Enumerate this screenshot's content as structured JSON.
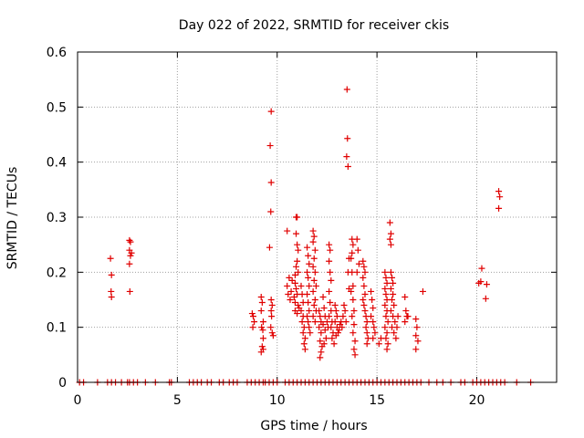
{
  "chart_data": {
    "type": "scatter",
    "title": "Day 022 of 2022, SRMTID for receiver ckis",
    "xlabel": "GPS time / hours",
    "ylabel": "SRMTID / TECUs",
    "xlim": [
      0,
      24
    ],
    "ylim": [
      0,
      0.6
    ],
    "xticks": [
      0,
      5,
      10,
      15,
      20
    ],
    "xtick_labels": [
      "0",
      "5",
      "10",
      "15",
      "20"
    ],
    "yticks": [
      0,
      0.1,
      0.2,
      0.3,
      0.4,
      0.5,
      0.6
    ],
    "ytick_labels": [
      "0",
      "0.1",
      "0.2",
      "0.3",
      "0.4",
      "0.5",
      "0.6"
    ],
    "grid": true,
    "marker": "+",
    "series_color": "#e00000",
    "zero_x": [
      0.1,
      0.3,
      1.0,
      1.5,
      1.7,
      1.9,
      2.2,
      2.5,
      2.6,
      2.8,
      3.0,
      3.4,
      3.9,
      4.6,
      4.7,
      5.6,
      5.8,
      6.0,
      6.2,
      6.5,
      6.7,
      7.1,
      7.3,
      7.6,
      7.8,
      8.0,
      8.5,
      8.7,
      8.9,
      9.1,
      9.3,
      9.4,
      9.6,
      9.8,
      10.0,
      10.4,
      10.6,
      10.8,
      11.0,
      11.2,
      11.4,
      11.6,
      11.8,
      12.0,
      12.2,
      12.4,
      12.6,
      12.8,
      13.0,
      13.2,
      13.4,
      13.6,
      13.8,
      14.0,
      14.2,
      14.4,
      14.6,
      14.8,
      15.0,
      15.2,
      15.4,
      15.6,
      15.8,
      16.0,
      16.2,
      16.4,
      16.6,
      16.8,
      17.0,
      17.2,
      17.6,
      18.0,
      18.3,
      18.7,
      19.2,
      19.4,
      19.8,
      20.0,
      20.2,
      20.4,
      20.6,
      20.8,
      21.0,
      21.2,
      21.4,
      22.0,
      22.7
    ],
    "points": [
      {
        "x": 1.65,
        "y": 0.225
      },
      {
        "x": 1.7,
        "y": 0.195
      },
      {
        "x": 1.68,
        "y": 0.165
      },
      {
        "x": 1.7,
        "y": 0.155
      },
      {
        "x": 2.6,
        "y": 0.258
      },
      {
        "x": 2.65,
        "y": 0.255
      },
      {
        "x": 2.6,
        "y": 0.24
      },
      {
        "x": 2.7,
        "y": 0.235
      },
      {
        "x": 2.65,
        "y": 0.23
      },
      {
        "x": 2.6,
        "y": 0.215
      },
      {
        "x": 2.62,
        "y": 0.165
      },
      {
        "x": 8.75,
        "y": 0.125
      },
      {
        "x": 8.8,
        "y": 0.12
      },
      {
        "x": 8.85,
        "y": 0.11
      },
      {
        "x": 8.78,
        "y": 0.1
      },
      {
        "x": 9.2,
        "y": 0.155
      },
      {
        "x": 9.25,
        "y": 0.145
      },
      {
        "x": 9.2,
        "y": 0.13
      },
      {
        "x": 9.3,
        "y": 0.11
      },
      {
        "x": 9.22,
        "y": 0.1
      },
      {
        "x": 9.28,
        "y": 0.095
      },
      {
        "x": 9.3,
        "y": 0.08
      },
      {
        "x": 9.25,
        "y": 0.065
      },
      {
        "x": 9.3,
        "y": 0.06
      },
      {
        "x": 9.2,
        "y": 0.055
      },
      {
        "x": 9.7,
        "y": 0.492
      },
      {
        "x": 9.65,
        "y": 0.43
      },
      {
        "x": 9.7,
        "y": 0.363
      },
      {
        "x": 9.68,
        "y": 0.31
      },
      {
        "x": 9.62,
        "y": 0.245
      },
      {
        "x": 9.7,
        "y": 0.15
      },
      {
        "x": 9.75,
        "y": 0.14
      },
      {
        "x": 9.7,
        "y": 0.13
      },
      {
        "x": 9.72,
        "y": 0.12
      },
      {
        "x": 9.68,
        "y": 0.1
      },
      {
        "x": 9.75,
        "y": 0.09
      },
      {
        "x": 9.8,
        "y": 0.085
      },
      {
        "x": 10.5,
        "y": 0.275
      },
      {
        "x": 10.6,
        "y": 0.19
      },
      {
        "x": 10.5,
        "y": 0.175
      },
      {
        "x": 10.55,
        "y": 0.16
      },
      {
        "x": 10.65,
        "y": 0.15
      },
      {
        "x": 10.7,
        "y": 0.165
      },
      {
        "x": 10.75,
        "y": 0.185
      },
      {
        "x": 10.95,
        "y": 0.3
      },
      {
        "x": 11.0,
        "y": 0.3
      },
      {
        "x": 10.95,
        "y": 0.27
      },
      {
        "x": 11.0,
        "y": 0.25
      },
      {
        "x": 11.05,
        "y": 0.24
      },
      {
        "x": 11.0,
        "y": 0.22
      },
      {
        "x": 10.95,
        "y": 0.21
      },
      {
        "x": 11.05,
        "y": 0.2
      },
      {
        "x": 10.9,
        "y": 0.195
      },
      {
        "x": 10.9,
        "y": 0.18
      },
      {
        "x": 10.95,
        "y": 0.17
      },
      {
        "x": 11.0,
        "y": 0.16
      },
      {
        "x": 10.85,
        "y": 0.155
      },
      {
        "x": 10.9,
        "y": 0.145
      },
      {
        "x": 11.05,
        "y": 0.14
      },
      {
        "x": 11.1,
        "y": 0.135
      },
      {
        "x": 10.9,
        "y": 0.13
      },
      {
        "x": 11.0,
        "y": 0.125
      },
      {
        "x": 11.2,
        "y": 0.175
      },
      {
        "x": 11.25,
        "y": 0.16
      },
      {
        "x": 11.3,
        "y": 0.145
      },
      {
        "x": 11.2,
        "y": 0.13
      },
      {
        "x": 11.3,
        "y": 0.12
      },
      {
        "x": 11.25,
        "y": 0.11
      },
      {
        "x": 11.35,
        "y": 0.1
      },
      {
        "x": 11.3,
        "y": 0.09
      },
      {
        "x": 11.4,
        "y": 0.08
      },
      {
        "x": 11.35,
        "y": 0.07
      },
      {
        "x": 11.4,
        "y": 0.06
      },
      {
        "x": 11.5,
        "y": 0.245
      },
      {
        "x": 11.55,
        "y": 0.23
      },
      {
        "x": 11.6,
        "y": 0.215
      },
      {
        "x": 11.5,
        "y": 0.2
      },
      {
        "x": 11.55,
        "y": 0.19
      },
      {
        "x": 11.6,
        "y": 0.175
      },
      {
        "x": 11.5,
        "y": 0.16
      },
      {
        "x": 11.55,
        "y": 0.145
      },
      {
        "x": 11.6,
        "y": 0.13
      },
      {
        "x": 11.5,
        "y": 0.12
      },
      {
        "x": 11.55,
        "y": 0.11
      },
      {
        "x": 11.6,
        "y": 0.1
      },
      {
        "x": 11.65,
        "y": 0.09
      },
      {
        "x": 11.8,
        "y": 0.275
      },
      {
        "x": 11.85,
        "y": 0.265
      },
      {
        "x": 11.8,
        "y": 0.255
      },
      {
        "x": 11.9,
        "y": 0.24
      },
      {
        "x": 11.85,
        "y": 0.225
      },
      {
        "x": 11.8,
        "y": 0.21
      },
      {
        "x": 11.9,
        "y": 0.2
      },
      {
        "x": 11.85,
        "y": 0.185
      },
      {
        "x": 11.95,
        "y": 0.175
      },
      {
        "x": 11.8,
        "y": 0.165
      },
      {
        "x": 11.9,
        "y": 0.15
      },
      {
        "x": 11.85,
        "y": 0.14
      },
      {
        "x": 11.95,
        "y": 0.13
      },
      {
        "x": 11.8,
        "y": 0.12
      },
      {
        "x": 11.9,
        "y": 0.11
      },
      {
        "x": 12.1,
        "y": 0.13
      },
      {
        "x": 12.15,
        "y": 0.12
      },
      {
        "x": 12.2,
        "y": 0.11
      },
      {
        "x": 12.1,
        "y": 0.1
      },
      {
        "x": 12.2,
        "y": 0.09
      },
      {
        "x": 12.15,
        "y": 0.075
      },
      {
        "x": 12.25,
        "y": 0.065
      },
      {
        "x": 12.2,
        "y": 0.055
      },
      {
        "x": 12.15,
        "y": 0.045
      },
      {
        "x": 12.3,
        "y": 0.155
      },
      {
        "x": 12.35,
        "y": 0.135
      },
      {
        "x": 12.4,
        "y": 0.12
      },
      {
        "x": 12.3,
        "y": 0.105
      },
      {
        "x": 12.4,
        "y": 0.095
      },
      {
        "x": 12.45,
        "y": 0.08
      },
      {
        "x": 12.35,
        "y": 0.07
      },
      {
        "x": 12.5,
        "y": 0.11
      },
      {
        "x": 12.55,
        "y": 0.1
      },
      {
        "x": 12.6,
        "y": 0.25
      },
      {
        "x": 12.65,
        "y": 0.24
      },
      {
        "x": 12.6,
        "y": 0.22
      },
      {
        "x": 12.65,
        "y": 0.2
      },
      {
        "x": 12.7,
        "y": 0.185
      },
      {
        "x": 12.6,
        "y": 0.165
      },
      {
        "x": 12.65,
        "y": 0.145
      },
      {
        "x": 12.7,
        "y": 0.13
      },
      {
        "x": 12.6,
        "y": 0.12
      },
      {
        "x": 12.75,
        "y": 0.11
      },
      {
        "x": 12.7,
        "y": 0.1
      },
      {
        "x": 12.8,
        "y": 0.09
      },
      {
        "x": 12.75,
        "y": 0.08
      },
      {
        "x": 12.85,
        "y": 0.07
      },
      {
        "x": 12.9,
        "y": 0.14
      },
      {
        "x": 12.95,
        "y": 0.13
      },
      {
        "x": 13.0,
        "y": 0.12
      },
      {
        "x": 12.9,
        "y": 0.11
      },
      {
        "x": 13.0,
        "y": 0.1
      },
      {
        "x": 13.05,
        "y": 0.09
      },
      {
        "x": 12.95,
        "y": 0.085
      },
      {
        "x": 13.1,
        "y": 0.095
      },
      {
        "x": 13.15,
        "y": 0.105
      },
      {
        "x": 13.2,
        "y": 0.11
      },
      {
        "x": 13.25,
        "y": 0.1
      },
      {
        "x": 13.3,
        "y": 0.12
      },
      {
        "x": 13.35,
        "y": 0.14
      },
      {
        "x": 13.4,
        "y": 0.13
      },
      {
        "x": 13.45,
        "y": 0.11
      },
      {
        "x": 13.5,
        "y": 0.532
      },
      {
        "x": 13.52,
        "y": 0.443
      },
      {
        "x": 13.48,
        "y": 0.41
      },
      {
        "x": 13.55,
        "y": 0.392
      },
      {
        "x": 13.6,
        "y": 0.225
      },
      {
        "x": 13.55,
        "y": 0.2
      },
      {
        "x": 13.6,
        "y": 0.17
      },
      {
        "x": 13.75,
        "y": 0.26
      },
      {
        "x": 13.8,
        "y": 0.25
      },
      {
        "x": 13.75,
        "y": 0.235
      },
      {
        "x": 13.7,
        "y": 0.225
      },
      {
        "x": 13.75,
        "y": 0.2
      },
      {
        "x": 13.8,
        "y": 0.175
      },
      {
        "x": 13.7,
        "y": 0.165
      },
      {
        "x": 13.8,
        "y": 0.15
      },
      {
        "x": 13.85,
        "y": 0.13
      },
      {
        "x": 13.75,
        "y": 0.12
      },
      {
        "x": 13.85,
        "y": 0.105
      },
      {
        "x": 13.8,
        "y": 0.09
      },
      {
        "x": 13.9,
        "y": 0.075
      },
      {
        "x": 13.85,
        "y": 0.06
      },
      {
        "x": 13.9,
        "y": 0.05
      },
      {
        "x": 14.0,
        "y": 0.26
      },
      {
        "x": 14.05,
        "y": 0.24
      },
      {
        "x": 14.1,
        "y": 0.215
      },
      {
        "x": 14.0,
        "y": 0.2
      },
      {
        "x": 14.3,
        "y": 0.22
      },
      {
        "x": 14.35,
        "y": 0.21
      },
      {
        "x": 14.4,
        "y": 0.2
      },
      {
        "x": 14.3,
        "y": 0.19
      },
      {
        "x": 14.35,
        "y": 0.175
      },
      {
        "x": 14.4,
        "y": 0.16
      },
      {
        "x": 14.3,
        "y": 0.15
      },
      {
        "x": 14.35,
        "y": 0.14
      },
      {
        "x": 14.4,
        "y": 0.13
      },
      {
        "x": 14.45,
        "y": 0.12
      },
      {
        "x": 14.5,
        "y": 0.11
      },
      {
        "x": 14.45,
        "y": 0.1
      },
      {
        "x": 14.5,
        "y": 0.09
      },
      {
        "x": 14.55,
        "y": 0.08
      },
      {
        "x": 14.5,
        "y": 0.07
      },
      {
        "x": 14.7,
        "y": 0.165
      },
      {
        "x": 14.75,
        "y": 0.15
      },
      {
        "x": 14.8,
        "y": 0.135
      },
      {
        "x": 14.7,
        "y": 0.12
      },
      {
        "x": 14.8,
        "y": 0.11
      },
      {
        "x": 14.85,
        "y": 0.1
      },
      {
        "x": 14.9,
        "y": 0.09
      },
      {
        "x": 14.8,
        "y": 0.08
      },
      {
        "x": 15.1,
        "y": 0.07
      },
      {
        "x": 15.2,
        "y": 0.08
      },
      {
        "x": 15.4,
        "y": 0.2
      },
      {
        "x": 15.45,
        "y": 0.19
      },
      {
        "x": 15.5,
        "y": 0.18
      },
      {
        "x": 15.4,
        "y": 0.17
      },
      {
        "x": 15.45,
        "y": 0.16
      },
      {
        "x": 15.5,
        "y": 0.15
      },
      {
        "x": 15.4,
        "y": 0.14
      },
      {
        "x": 15.5,
        "y": 0.13
      },
      {
        "x": 15.45,
        "y": 0.12
      },
      {
        "x": 15.55,
        "y": 0.11
      },
      {
        "x": 15.4,
        "y": 0.1
      },
      {
        "x": 15.5,
        "y": 0.09
      },
      {
        "x": 15.45,
        "y": 0.08
      },
      {
        "x": 15.55,
        "y": 0.07
      },
      {
        "x": 15.5,
        "y": 0.06
      },
      {
        "x": 15.65,
        "y": 0.29
      },
      {
        "x": 15.7,
        "y": 0.27
      },
      {
        "x": 15.65,
        "y": 0.26
      },
      {
        "x": 15.7,
        "y": 0.25
      },
      {
        "x": 15.7,
        "y": 0.2
      },
      {
        "x": 15.75,
        "y": 0.19
      },
      {
        "x": 15.8,
        "y": 0.18
      },
      {
        "x": 15.7,
        "y": 0.17
      },
      {
        "x": 15.8,
        "y": 0.16
      },
      {
        "x": 15.75,
        "y": 0.15
      },
      {
        "x": 15.85,
        "y": 0.14
      },
      {
        "x": 15.7,
        "y": 0.13
      },
      {
        "x": 15.8,
        "y": 0.12
      },
      {
        "x": 15.9,
        "y": 0.11
      },
      {
        "x": 15.75,
        "y": 0.1
      },
      {
        "x": 15.85,
        "y": 0.09
      },
      {
        "x": 15.95,
        "y": 0.08
      },
      {
        "x": 16.0,
        "y": 0.1
      },
      {
        "x": 16.05,
        "y": 0.12
      },
      {
        "x": 16.4,
        "y": 0.155
      },
      {
        "x": 16.45,
        "y": 0.13
      },
      {
        "x": 16.5,
        "y": 0.12
      },
      {
        "x": 16.4,
        "y": 0.11
      },
      {
        "x": 16.55,
        "y": 0.12
      },
      {
        "x": 16.95,
        "y": 0.115
      },
      {
        "x": 17.0,
        "y": 0.1
      },
      {
        "x": 16.95,
        "y": 0.085
      },
      {
        "x": 17.05,
        "y": 0.075
      },
      {
        "x": 16.95,
        "y": 0.06
      },
      {
        "x": 17.3,
        "y": 0.165
      },
      {
        "x": 20.1,
        "y": 0.18
      },
      {
        "x": 20.2,
        "y": 0.183
      },
      {
        "x": 20.25,
        "y": 0.207
      },
      {
        "x": 20.5,
        "y": 0.178
      },
      {
        "x": 20.45,
        "y": 0.152
      },
      {
        "x": 21.1,
        "y": 0.347
      },
      {
        "x": 21.15,
        "y": 0.337
      },
      {
        "x": 21.1,
        "y": 0.316
      }
    ]
  }
}
